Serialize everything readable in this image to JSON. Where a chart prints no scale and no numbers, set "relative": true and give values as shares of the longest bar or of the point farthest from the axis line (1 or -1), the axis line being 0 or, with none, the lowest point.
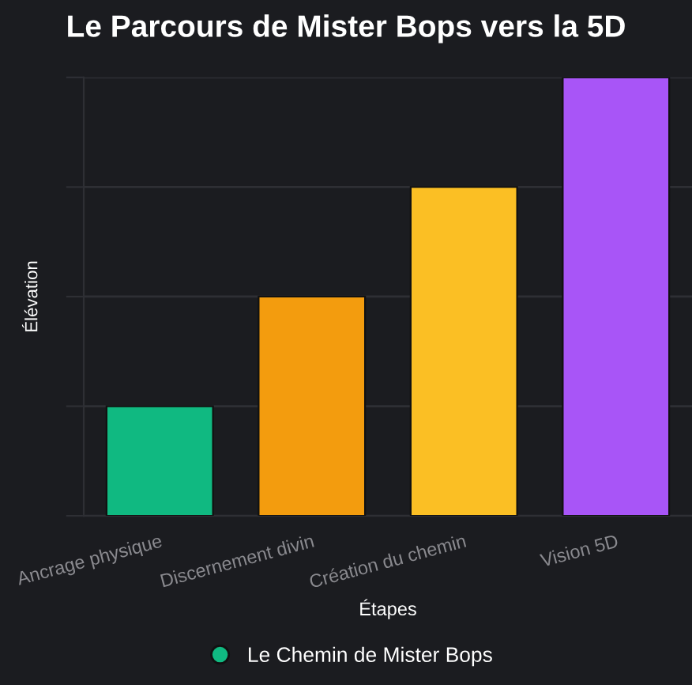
{
  "chart_data": {
    "type": "bar",
    "title": "Le Parcours de Mister Bops vers la 5D",
    "xlabel": "Étapes",
    "ylabel": "Élévation",
    "categories": [
      "Ancrage physique",
      "Discernement divin",
      "Création du chemin",
      "Vision 5D"
    ],
    "series": [
      {
        "name": "Le Chemin de Mister Bops",
        "values": [
          0.25,
          0.5,
          0.75,
          1
        ],
        "colors": [
          "#10b981",
          "#f39c0e",
          "#fbbf24",
          "#a855f7"
        ]
      }
    ],
    "relative": true,
    "grid": "y",
    "legend": "bottom"
  }
}
